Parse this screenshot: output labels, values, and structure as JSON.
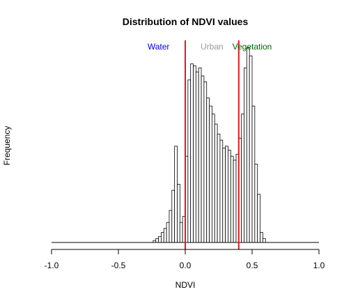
{
  "chart_data": {
    "type": "bar",
    "title": "Distribution of NDVI values",
    "xlabel": "NDVI",
    "ylabel": "Frequency",
    "xlim": [
      -1.0,
      1.0
    ],
    "ylim": [
      0,
      1.0
    ],
    "x_ticks": [
      "-1.0",
      "-0.5",
      "0.0",
      "0.5",
      "1.0"
    ],
    "x_tick_values": [
      -1.0,
      -0.5,
      0.0,
      0.5,
      1.0
    ],
    "bin_width": 0.02,
    "bins_start": [
      -0.24,
      -0.22,
      -0.2,
      -0.18,
      -0.16,
      -0.14,
      -0.12,
      -0.1,
      -0.08,
      -0.06,
      -0.04,
      -0.02,
      0.0,
      0.02,
      0.04,
      0.06,
      0.08,
      0.1,
      0.12,
      0.14,
      0.16,
      0.18,
      0.2,
      0.22,
      0.24,
      0.26,
      0.28,
      0.3,
      0.32,
      0.34,
      0.36,
      0.38,
      0.4,
      0.42,
      0.44,
      0.46,
      0.48,
      0.5,
      0.52,
      0.54,
      0.56,
      0.58
    ],
    "values": [
      0.01,
      0.02,
      0.03,
      0.05,
      0.07,
      0.1,
      0.16,
      0.26,
      0.48,
      0.29,
      0.1,
      0.13,
      0.43,
      0.81,
      0.89,
      0.88,
      0.85,
      0.87,
      0.83,
      0.8,
      0.72,
      0.68,
      0.64,
      0.59,
      0.54,
      0.51,
      0.47,
      0.48,
      0.46,
      0.43,
      0.41,
      0.44,
      0.52,
      0.64,
      0.87,
      0.97,
      0.93,
      0.68,
      0.39,
      0.24,
      0.05,
      0.02
    ],
    "vlines": [
      {
        "x": 0.0,
        "color": "#e8151b"
      },
      {
        "x": 0.4,
        "color": "#e8151b"
      }
    ],
    "annotations": [
      {
        "text": "Water",
        "x": -0.2,
        "color": "#0000cc"
      },
      {
        "text": "Urban",
        "x": 0.2,
        "color": "#999999"
      },
      {
        "text": "Vegetation",
        "x": 0.5,
        "color": "#006400"
      }
    ]
  }
}
